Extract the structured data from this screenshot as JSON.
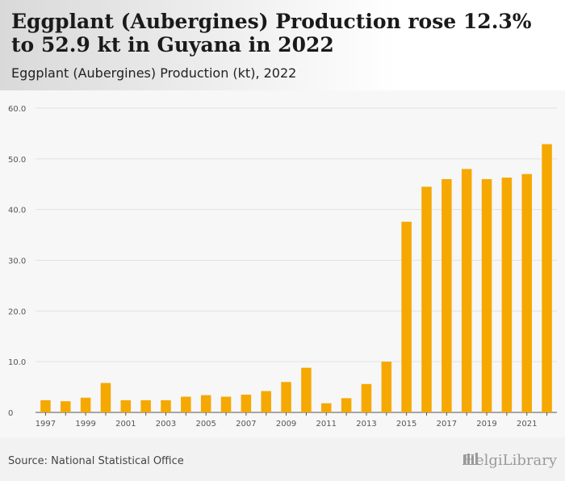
{
  "title": "Eggplant (Aubergines) Production rose 12.3% to 52.9 kt in Guyana in 2022",
  "subtitle": "Eggplant (Aubergines) Production (kt), 2022",
  "source": "Source: National Statistical Office",
  "logo_text": "HelgiLibrary",
  "colors": {
    "bar": "#f5a800",
    "grid": "#e2e2e2",
    "axis": "#555555",
    "tick_text": "#555555"
  },
  "chart_data": {
    "type": "bar",
    "title": "",
    "xlabel": "",
    "ylabel": "",
    "ylim": [
      0,
      60
    ],
    "yticks": [
      "60.0",
      "50.0",
      "40.0",
      "30.0",
      "20.0",
      "10.0",
      "0"
    ],
    "ytick_values": [
      60,
      50,
      40,
      30,
      20,
      10,
      0
    ],
    "categories": [
      "1997",
      "1998",
      "1999",
      "2000",
      "2001",
      "2002",
      "2003",
      "2004",
      "2005",
      "2006",
      "2007",
      "2008",
      "2009",
      "2010",
      "2011",
      "2012",
      "2013",
      "2014",
      "2015",
      "2016",
      "2017",
      "2018",
      "2019",
      "2020",
      "2021",
      "2022"
    ],
    "xtick_labels": [
      "1997",
      "1999",
      "2001",
      "2003",
      "2005",
      "2007",
      "2009",
      "2011",
      "2013",
      "2015",
      "2017",
      "2019",
      "2021"
    ],
    "values": [
      2.4,
      2.2,
      2.9,
      5.8,
      2.4,
      2.4,
      2.4,
      3.1,
      3.4,
      3.1,
      3.5,
      4.2,
      6.0,
      8.8,
      1.8,
      2.8,
      5.6,
      10.0,
      37.6,
      44.5,
      46.0,
      48.0,
      46.0,
      46.3,
      47.0,
      52.9
    ],
    "grid": true,
    "legend": "none"
  }
}
